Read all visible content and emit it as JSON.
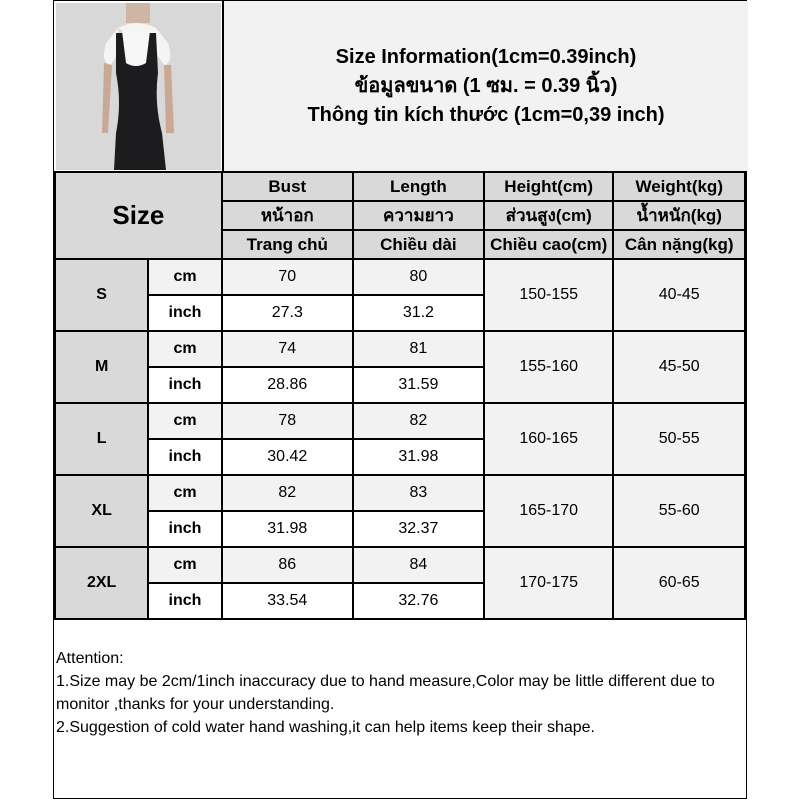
{
  "header": {
    "line1": "Size Information(1cm=0.39inch)",
    "line2": "ข้อมูลขนาด (1 ซม. = 0.39 นิ้ว)",
    "line3": "Thông tin kích thước (1cm=0,39 inch)"
  },
  "table": {
    "size_label": "Size",
    "columns": [
      {
        "en": "Bust",
        "th": "หน้าอก",
        "vi": "Trang chủ"
      },
      {
        "en": "Length",
        "th": "ความยาว",
        "vi": "Chiều dài"
      },
      {
        "en": "Height(cm)",
        "th": "ส่วนสูง(cm)",
        "vi": "Chiều cao(cm)"
      },
      {
        "en": "Weight(kg)",
        "th": "น้ำหนัก(kg)",
        "vi": "Cân nặng(kg)"
      }
    ],
    "units": {
      "cm": "cm",
      "inch": "inch"
    },
    "rows": [
      {
        "size": "S",
        "bust_cm": "70",
        "length_cm": "80",
        "bust_in": "27.3",
        "length_in": "31.2",
        "height": "150-155",
        "weight": "40-45"
      },
      {
        "size": "M",
        "bust_cm": "74",
        "length_cm": "81",
        "bust_in": "28.86",
        "length_in": "31.59",
        "height": "155-160",
        "weight": "45-50"
      },
      {
        "size": "L",
        "bust_cm": "78",
        "length_cm": "82",
        "bust_in": "30.42",
        "length_in": "31.98",
        "height": "160-165",
        "weight": "50-55"
      },
      {
        "size": "XL",
        "bust_cm": "82",
        "length_cm": "83",
        "bust_in": "31.98",
        "length_in": "32.37",
        "height": "165-170",
        "weight": "55-60"
      },
      {
        "size": "2XL",
        "bust_cm": "86",
        "length_cm": "84",
        "bust_in": "33.54",
        "length_in": "32.76",
        "height": "170-175",
        "weight": "60-65"
      }
    ]
  },
  "attention": {
    "title": "Attention:",
    "line1": "1.Size may be 2cm/1inch inaccuracy due to hand measure,Color may be little different due to monitor ,thanks for your understanding.",
    "line2": "2.Suggestion of cold water hand washing,it can help items keep their shape."
  }
}
